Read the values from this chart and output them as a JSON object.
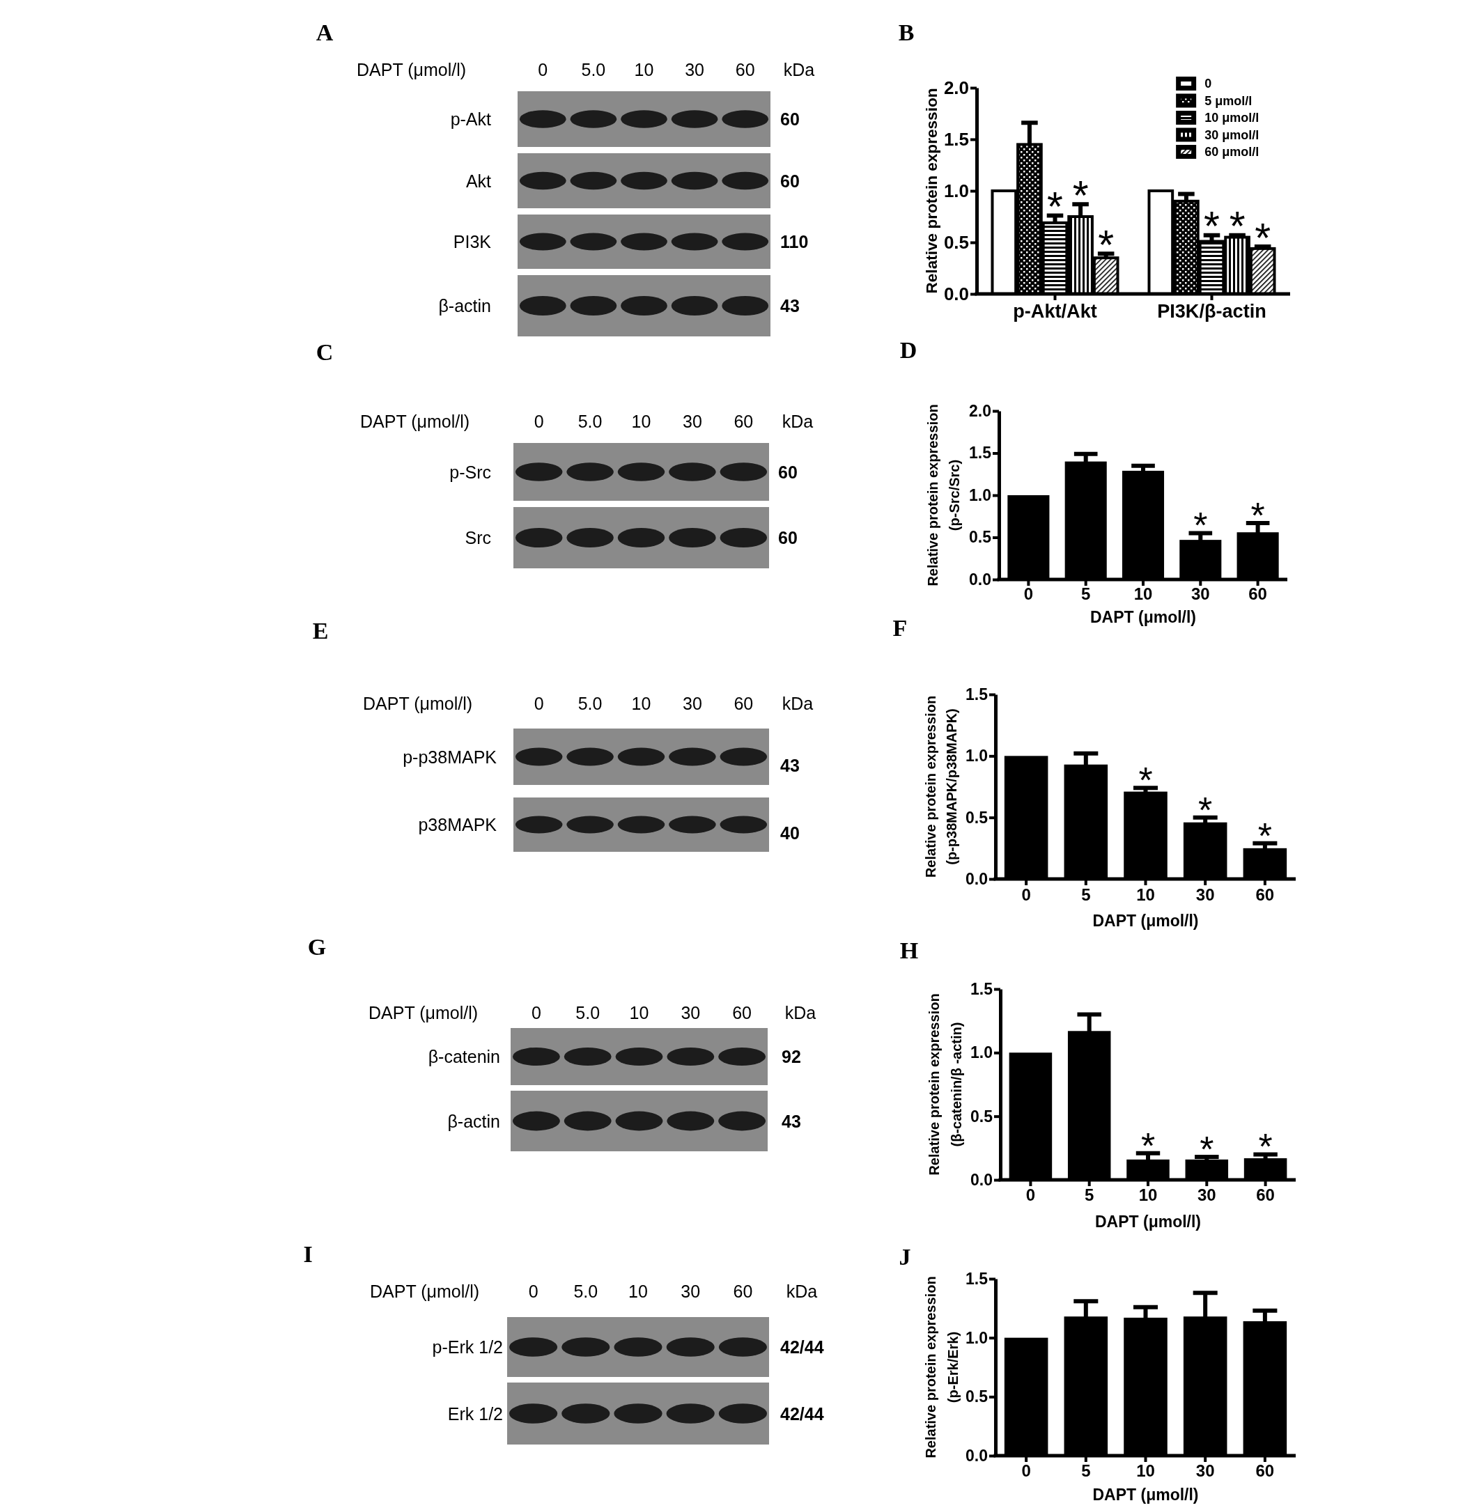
{
  "chart_data": [
    {
      "type": "other",
      "title": "A",
      "xlabel": "DAPT (μmol/l)",
      "categories": [
        "0",
        "5.0",
        "10",
        "30",
        "60"
      ],
      "y_categories": [
        "p-Akt",
        "Akt",
        "PI3K",
        "β-actin"
      ],
      "y2label": "kDa",
      "y2_categories": [
        "60",
        "60",
        "110",
        "43"
      ]
    },
    {
      "type": "bar",
      "title": "B",
      "ylabel": "Relative protein expression",
      "categories": [
        "p-Akt/Akt",
        "PI3K/β-actin"
      ],
      "series": [
        {
          "name": "0",
          "color": "#ffffff",
          "values": [
            1.0,
            1.0
          ],
          "errors": [
            null,
            null
          ],
          "value_labels": [
            null,
            null
          ]
        },
        {
          "name": "5 μmol/l",
          "color": "#000000",
          "values": [
            1.45,
            0.9
          ],
          "errors": [
            0.21,
            0.07
          ],
          "value_labels": [
            null,
            null
          ]
        },
        {
          "name": "10 μmol/l",
          "color": "#000000",
          "values": [
            0.69,
            0.51
          ],
          "errors": [
            0.07,
            0.06
          ],
          "value_labels": [
            "*",
            "*"
          ]
        },
        {
          "name": "30 μmol/l",
          "color": "#000000",
          "values": [
            0.75,
            0.55
          ],
          "errors": [
            0.12,
            0.02
          ],
          "value_labels": [
            "*",
            "*"
          ]
        },
        {
          "name": "60 μmol/l",
          "color": "#000000",
          "values": [
            0.35,
            0.44
          ],
          "errors": [
            0.04,
            0.02
          ],
          "value_labels": [
            "*",
            "*"
          ]
        }
      ],
      "ylim": [
        0,
        2
      ],
      "yticks": [
        {
          "value": 0,
          "label": "0.0"
        },
        {
          "value": 0.5,
          "label": "0.5"
        },
        {
          "value": 1,
          "label": "1.0"
        },
        {
          "value": 1.5,
          "label": "1.5"
        },
        {
          "value": 2,
          "label": "2.0"
        }
      ],
      "legend": "top right"
    },
    {
      "type": "other",
      "title": "C",
      "xlabel": "DAPT (μmol/l)",
      "categories": [
        "0",
        "5.0",
        "10",
        "30",
        "60"
      ],
      "y_categories": [
        "p-Src",
        "Src"
      ],
      "y2label": "kDa",
      "y2_categories": [
        "60",
        "60"
      ]
    },
    {
      "type": "bar",
      "title": "D",
      "ylabel": "Relative protein expression\n(p-Src/Src)",
      "xlabel": "DAPT (μmol/l)",
      "categories": [
        "0",
        "5",
        "10",
        "30",
        "60"
      ],
      "values": [
        1.0,
        1.4,
        1.29,
        0.47,
        0.56
      ],
      "color": "#000000",
      "errors": [
        null,
        0.09,
        0.06,
        0.08,
        0.11
      ],
      "value_labels": [
        null,
        null,
        null,
        "*",
        "*"
      ],
      "ylim": [
        0,
        2
      ],
      "yticks": [
        {
          "value": 0,
          "label": "0.0"
        },
        {
          "value": 0.5,
          "label": "0.5"
        },
        {
          "value": 1,
          "label": "1.0"
        },
        {
          "value": 1.5,
          "label": "1.5"
        },
        {
          "value": 2,
          "label": "2.0"
        }
      ]
    },
    {
      "type": "other",
      "title": "E",
      "xlabel": "DAPT (μmol/l)",
      "categories": [
        "0",
        "5.0",
        "10",
        "30",
        "60"
      ],
      "y_categories": [
        "p-p38MAPK",
        "p38MAPK"
      ],
      "y2label": "kDa",
      "y2_categories": [
        "43",
        "40"
      ]
    },
    {
      "type": "bar",
      "title": "F",
      "ylabel": "Relative protein expression\n(p-p38MAPK/p38MAPK)",
      "xlabel": "DAPT (μmol/l)",
      "categories": [
        "0",
        "5",
        "10",
        "30",
        "60"
      ],
      "values": [
        1.0,
        0.93,
        0.71,
        0.46,
        0.25
      ],
      "color": "#000000",
      "errors": [
        null,
        0.09,
        0.03,
        0.04,
        0.04
      ],
      "value_labels": [
        null,
        null,
        "*",
        "*",
        "*"
      ],
      "ylim": [
        0,
        1.5
      ],
      "yticks": [
        {
          "value": 0,
          "label": "0.0"
        },
        {
          "value": 0.5,
          "label": "0.5"
        },
        {
          "value": 1,
          "label": "1.0"
        },
        {
          "value": 1.5,
          "label": "1.5"
        }
      ]
    },
    {
      "type": "other",
      "title": "G",
      "xlabel": "DAPT (μmol/l)",
      "categories": [
        "0",
        "5.0",
        "10",
        "30",
        "60"
      ],
      "y_categories": [
        "β-catenin",
        "β-actin"
      ],
      "y2label": "kDa",
      "y2_categories": [
        "92",
        "43"
      ]
    },
    {
      "type": "bar",
      "title": "H",
      "ylabel": "Relative protein expression\n(β-catenin/β -actin)",
      "xlabel": "DAPT (μmol/l)",
      "categories": [
        "0",
        "5",
        "10",
        "30",
        "60"
      ],
      "values": [
        1.0,
        1.17,
        0.16,
        0.16,
        0.17
      ],
      "color": "#000000",
      "errors": [
        null,
        0.13,
        0.05,
        0.02,
        0.03
      ],
      "value_labels": [
        null,
        null,
        "*",
        "*",
        "*"
      ],
      "ylim": [
        0,
        1.5
      ],
      "yticks": [
        {
          "value": 0,
          "label": "0.0"
        },
        {
          "value": 0.5,
          "label": "0.5"
        },
        {
          "value": 1,
          "label": "1.0"
        },
        {
          "value": 1.5,
          "label": "1.5"
        }
      ]
    },
    {
      "type": "other",
      "title": "I",
      "xlabel": "DAPT (μmol/l)",
      "categories": [
        "0",
        "5.0",
        "10",
        "30",
        "60"
      ],
      "y_categories": [
        "p-Erk 1/2",
        "Erk 1/2"
      ],
      "y2label": "kDa",
      "y2_categories": [
        "42/44",
        "42/44"
      ]
    },
    {
      "type": "bar",
      "title": "J",
      "ylabel": "Relative protein expression\n(p-Erk/Erk)",
      "xlabel": "DAPT (μmol/l)",
      "categories": [
        "0",
        "5",
        "10",
        "30",
        "60"
      ],
      "values": [
        1.0,
        1.18,
        1.17,
        1.18,
        1.14
      ],
      "color": "#000000",
      "errors": [
        null,
        0.13,
        0.09,
        0.2,
        0.09
      ],
      "ylim": [
        0,
        1.5
      ],
      "yticks": [
        {
          "value": 0,
          "label": "0.0"
        },
        {
          "value": 0.5,
          "label": "0.5"
        },
        {
          "value": 1,
          "label": "1.0"
        },
        {
          "value": 1.5,
          "label": "1.5"
        }
      ]
    }
  ]
}
